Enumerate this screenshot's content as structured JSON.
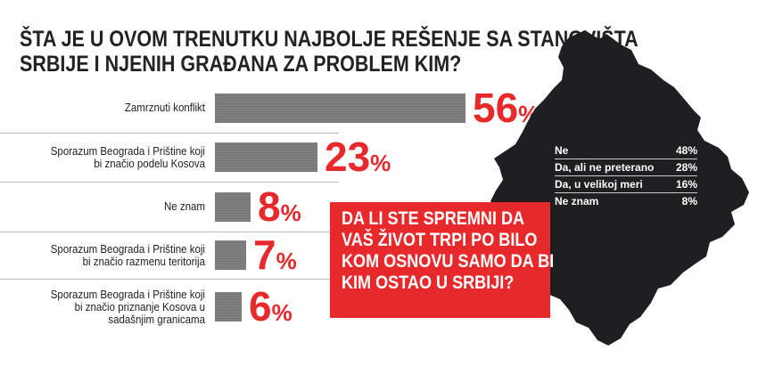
{
  "chart_data": [
    {
      "type": "bar",
      "title": "ŠTA JE U OVOM TRENUTKU NAJBOLJE REŠENJE SA STANOVIŠTA SRBIJE I NJENIH GRAĐANA ZA PROBLEM KIM?",
      "title_lines": [
        "ŠTA JE U OVOM TRENUTKU NAJBOLJE REŠENJE SA STANOVIŠTA",
        "SRBIJE I NJENIH GRAĐANA ZA PROBLEM KIM?"
      ],
      "categories": [
        "Zamrznuti konflikt",
        "Sporazum Beograda i Prištine koji bi značio podelu Kosova",
        "Ne znam",
        "Sporazum Beograda i Prištine koji bi značio razmenu teritorija",
        "Sporazum Beograda i Prištine koji bi značio priznanje Kosova u sadašnjim granicama"
      ],
      "category_lines": [
        [
          "Zamrznuti konflikt"
        ],
        [
          "Sporazum Beograda i Prištine koji",
          "bi značio podelu Kosova"
        ],
        [
          "Ne znam"
        ],
        [
          "Sporazum Beograda i Prištine koji",
          "bi značio razmenu teritorija"
        ],
        [
          "Sporazum Beograda i Prištine koji",
          "bi značio priznanje Kosova u",
          "sadašnjim granicama"
        ]
      ],
      "values": [
        56,
        23,
        8,
        7,
        6
      ],
      "value_labels": [
        "56",
        "23",
        "8",
        "7",
        "6"
      ],
      "unit": "%",
      "xlim": [
        0,
        56
      ]
    },
    {
      "type": "table",
      "title": "DA LI STE SPREMNI DA VAŠ ŽIVOT TRPI PO BILO KOM OSNOVU SAMO DA BI KIM OSTAO U SRBIJI?",
      "title_lines": [
        "DA LI STE SPREMNI DA",
        "VAŠ ŽIVOT TRPI PO BILO",
        "KOM OSNOVU SAMO DA BI",
        "KIM OSTAO U SRBIJI?"
      ],
      "rows": [
        {
          "label": "Ne",
          "value": "48%"
        },
        {
          "label": "Da, ali ne preterano",
          "value": "28%"
        },
        {
          "label": "Da, u velikoj meri",
          "value": "16%"
        },
        {
          "label": "Ne znam",
          "value": "8%"
        }
      ]
    }
  ],
  "colors": {
    "accent": "#e8292c",
    "bar": "#808080",
    "map": "#1f1f21",
    "text": "#222222"
  },
  "map_icon": "kosovo-map-silhouette"
}
